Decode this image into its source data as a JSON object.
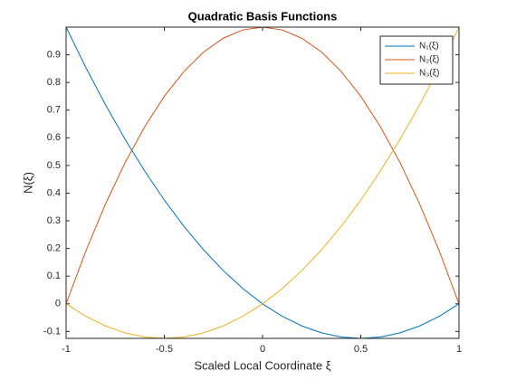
{
  "chart_data": {
    "type": "line",
    "title": "Quadratic Basis Functions",
    "x_label": "Scaled Local Coordinate ξ",
    "y_label": "N(ξ)",
    "x": [
      -1,
      -0.9,
      -0.8,
      -0.7,
      -0.6,
      -0.5,
      -0.4,
      -0.3,
      -0.2,
      -0.1,
      0,
      0.1,
      0.2,
      0.3,
      0.4,
      0.5,
      0.6,
      0.7,
      0.8,
      0.9,
      1
    ],
    "series": [
      {
        "name": "N₁(ξ)",
        "color": "#0072BD",
        "values": [
          1,
          0.855,
          0.72,
          0.595,
          0.48,
          0.375,
          0.28,
          0.195,
          0.12,
          0.055,
          0,
          -0.045,
          -0.08,
          -0.105,
          -0.12,
          -0.125,
          -0.12,
          -0.105,
          -0.08,
          -0.045,
          0
        ]
      },
      {
        "name": "N₂(ξ)",
        "color": "#D95319",
        "values": [
          0,
          0.19,
          0.36,
          0.51,
          0.64,
          0.75,
          0.84,
          0.91,
          0.96,
          0.99,
          1,
          0.99,
          0.96,
          0.91,
          0.84,
          0.75,
          0.64,
          0.51,
          0.36,
          0.19,
          0
        ]
      },
      {
        "name": "N₃(ξ)",
        "color": "#EDB120",
        "values": [
          0,
          -0.045,
          -0.08,
          -0.105,
          -0.12,
          -0.125,
          -0.12,
          -0.105,
          -0.08,
          -0.045,
          0,
          0.055,
          0.12,
          0.195,
          0.28,
          0.375,
          0.48,
          0.595,
          0.72,
          0.855,
          1
        ]
      }
    ],
    "xlim": [
      -1,
      1
    ],
    "ylim": [
      -0.125,
      1
    ],
    "xticks": [
      -1,
      -0.5,
      0,
      0.5,
      1
    ],
    "yticks": [
      -0.1,
      0,
      0.1,
      0.2,
      0.3,
      0.4,
      0.5,
      0.6,
      0.7,
      0.8,
      0.9
    ],
    "grid": false,
    "legend": "top-right"
  }
}
